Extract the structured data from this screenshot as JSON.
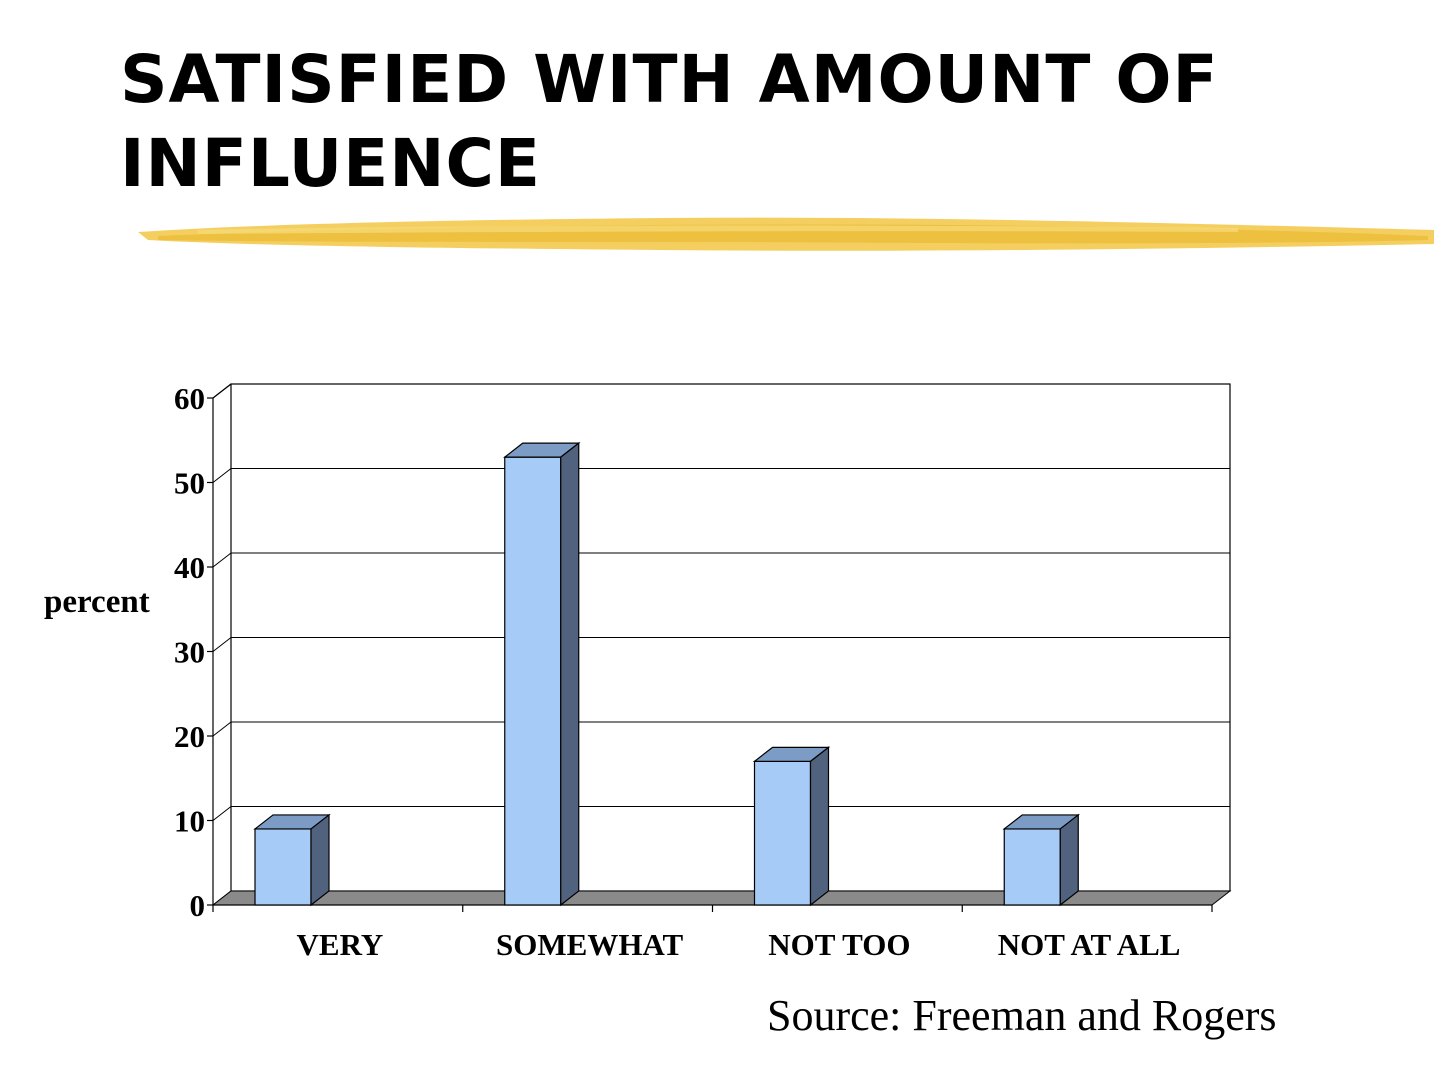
{
  "slide": {
    "title": "SATISFIED WITH AMOUNT OF\nINFLUENCE",
    "source": "Source: Freeman and Rogers",
    "accent_color": "#f2c744"
  },
  "chart_data": {
    "type": "bar",
    "style": "3d",
    "categories": [
      "VERY",
      "SOMEWHAT",
      "NOT TOO",
      "NOT AT ALL"
    ],
    "values": [
      9,
      53,
      17,
      9
    ],
    "ylabel": "percent",
    "xlabel": "",
    "ylim": [
      0,
      60
    ],
    "yticks": [
      0,
      10,
      20,
      30,
      40,
      50,
      60
    ],
    "grid": true,
    "colors": {
      "bar_front": "#a6cbf7",
      "bar_top": "#7c9cc5",
      "bar_side": "#51627f",
      "floor": "#8a8a8a"
    }
  }
}
